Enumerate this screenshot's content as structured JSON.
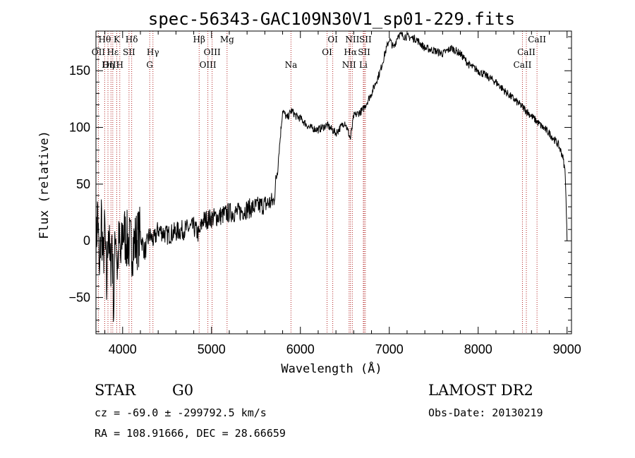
{
  "page": {
    "title": "spec-56343-GAC109N30V1_sp01-229.fits",
    "class_label": "STAR",
    "subclass_label": "G0",
    "survey_label": "LAMOST DR2",
    "cz_text": "cz = -69.0 ± -299792.5 km/s",
    "obs_date_text": "Obs-Date: 20130219",
    "radec_text": "RA = 108.91666, DEC =  28.66659"
  },
  "colors": {
    "spectrum": "#000000",
    "line_marker": "#b22222",
    "axes": "#000000"
  },
  "chart_data": {
    "type": "line",
    "title": "spec-56343-GAC109N30V1_sp01-229.fits",
    "xlabel": "Wavelength (Å)",
    "ylabel": "Flux (relative)",
    "xlim": [
      3700,
      9050
    ],
    "ylim": [
      -82,
      185
    ],
    "xticks": [
      4000,
      5000,
      6000,
      7000,
      8000,
      9000
    ],
    "yticks": [
      -50,
      0,
      50,
      100,
      150
    ],
    "grid": false,
    "series": [
      {
        "x": [
          3700,
          3720,
          3740,
          3760,
          3780,
          3800,
          3820,
          3840,
          3860,
          3880,
          3900,
          3920,
          3940,
          3960,
          3980,
          4000,
          4050,
          4100,
          4150,
          4200,
          4250,
          4300,
          4350,
          4400,
          4500,
          4600,
          4700,
          4800,
          4860,
          4900,
          5000,
          5100,
          5200,
          5300,
          5400,
          5500,
          5600,
          5700,
          5750,
          5800,
          5850,
          5900,
          5950,
          6000,
          6100,
          6200,
          6300,
          6400,
          6500,
          6563,
          6600,
          6700,
          6800,
          6850,
          6900,
          6950,
          7000,
          7050,
          7100,
          7200,
          7300,
          7400,
          7500,
          7600,
          7700,
          7800,
          7900,
          8000,
          8100,
          8200,
          8300,
          8400,
          8500,
          8600,
          8700,
          8800,
          8900,
          8950,
          8980,
          9000
        ],
        "y": [
          -10,
          30,
          -40,
          25,
          -20,
          10,
          -45,
          20,
          -30,
          5,
          -60,
          15,
          -25,
          0,
          -20,
          10,
          0,
          -5,
          0,
          5,
          -10,
          5,
          0,
          10,
          5,
          8,
          10,
          12,
          5,
          18,
          20,
          22,
          25,
          25,
          28,
          30,
          32,
          35,
          70,
          115,
          108,
          115,
          110,
          108,
          100,
          98,
          102,
          95,
          105,
          90,
          110,
          115,
          130,
          140,
          150,
          165,
          178,
          170,
          182,
          180,
          178,
          170,
          168,
          165,
          170,
          165,
          155,
          150,
          145,
          140,
          132,
          125,
          118,
          110,
          102,
          95,
          85,
          75,
          60,
          0
        ]
      }
    ],
    "lines": [
      {
        "label": "Hθ",
        "x": 3798,
        "row": 0
      },
      {
        "label": "OII",
        "x": 3727,
        "row": 1
      },
      {
        "label": "OIII",
        "x": 3869,
        "row": 2
      },
      {
        "label": "K",
        "x": 3934,
        "row": 0
      },
      {
        "label": "Hε",
        "x": 3889,
        "row": 1
      },
      {
        "label": "Hη",
        "x": 3835,
        "row": 2
      },
      {
        "label": "H",
        "x": 3968,
        "row": 2
      },
      {
        "label": "SII",
        "x": 4072,
        "row": 1
      },
      {
        "label": "Hδ",
        "x": 4102,
        "row": 0
      },
      {
        "label": "Hγ",
        "x": 4341,
        "row": 1
      },
      {
        "label": "G",
        "x": 4305,
        "row": 2
      },
      {
        "label": "Hβ",
        "x": 4861,
        "row": 0
      },
      {
        "label": "OIII",
        "x": 5007,
        "row": 1
      },
      {
        "label": "OIII",
        "x": 4959,
        "row": 2
      },
      {
        "label": "Mg",
        "x": 5175,
        "row": 0
      },
      {
        "label": "Na",
        "x": 5894,
        "row": 2
      },
      {
        "label": "OI",
        "x": 6300,
        "row": 1
      },
      {
        "label": "OI",
        "x": 6364,
        "row": 0
      },
      {
        "label": "NII",
        "x": 6548,
        "row": 2
      },
      {
        "label": "Hα",
        "x": 6563,
        "row": 1
      },
      {
        "label": "NII",
        "x": 6584,
        "row": 0
      },
      {
        "label": "Li",
        "x": 6708,
        "row": 2
      },
      {
        "label": "SII",
        "x": 6717,
        "row": 1
      },
      {
        "label": "SII",
        "x": 6731,
        "row": 0
      },
      {
        "label": "CaII",
        "x": 8498,
        "row": 2
      },
      {
        "label": "CaII",
        "x": 8542,
        "row": 1
      },
      {
        "label": "CaII",
        "x": 8662,
        "row": 0
      }
    ]
  }
}
